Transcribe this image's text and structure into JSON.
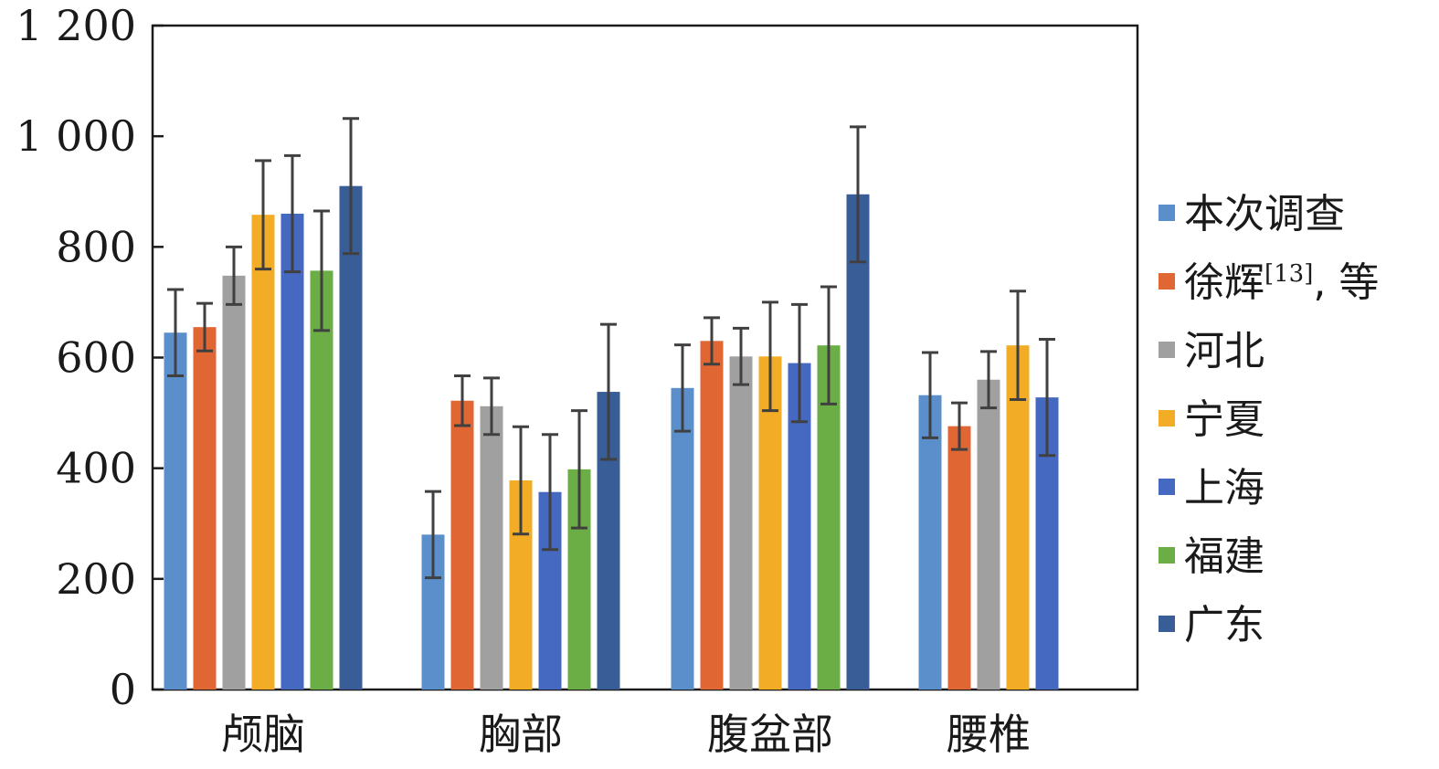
{
  "chart_data": {
    "type": "bar",
    "title": "",
    "xlabel": "",
    "ylabel": "",
    "ylim": [
      0,
      1200
    ],
    "yticks": [
      0,
      200,
      400,
      600,
      800,
      1000,
      1200
    ],
    "ytick_labels": [
      "0",
      "200",
      "400",
      "600",
      "800",
      "1 000",
      "1 200"
    ],
    "categories": [
      "颅脑",
      "胸部",
      "腹盆部",
      "腰椎"
    ],
    "legend_position": "right",
    "series": [
      {
        "name": "本次调查",
        "sup": "",
        "suffix": "",
        "color": "#5B8FCB",
        "values": [
          645,
          280,
          545,
          532
        ],
        "errors": [
          78,
          78,
          78,
          77
        ]
      },
      {
        "name": "徐辉",
        "sup": "[13]",
        "suffix": ", 等",
        "color": "#E06634",
        "values": [
          655,
          522,
          630,
          476
        ],
        "errors": [
          43,
          45,
          42,
          42
        ]
      },
      {
        "name": "河北",
        "sup": "",
        "suffix": "",
        "color": "#A0A0A0",
        "values": [
          748,
          512,
          602,
          560
        ],
        "errors": [
          52,
          51,
          51,
          51
        ]
      },
      {
        "name": "宁夏",
        "sup": "",
        "suffix": "",
        "color": "#F2AC25",
        "values": [
          858,
          378,
          602,
          622
        ],
        "errors": [
          98,
          97,
          98,
          98
        ]
      },
      {
        "name": "上海",
        "sup": "",
        "suffix": "",
        "color": "#4569C1",
        "values": [
          860,
          357,
          590,
          528
        ],
        "errors": [
          105,
          104,
          106,
          105
        ]
      },
      {
        "name": "福建",
        "sup": "",
        "suffix": "",
        "color": "#6AAE45",
        "values": [
          757,
          398,
          622,
          null
        ],
        "errors": [
          108,
          106,
          106,
          null
        ]
      },
      {
        "name": "广东",
        "sup": "",
        "suffix": "",
        "color": "#385D97",
        "values": [
          910,
          538,
          895,
          null
        ],
        "errors": [
          122,
          122,
          122,
          null
        ]
      }
    ]
  }
}
